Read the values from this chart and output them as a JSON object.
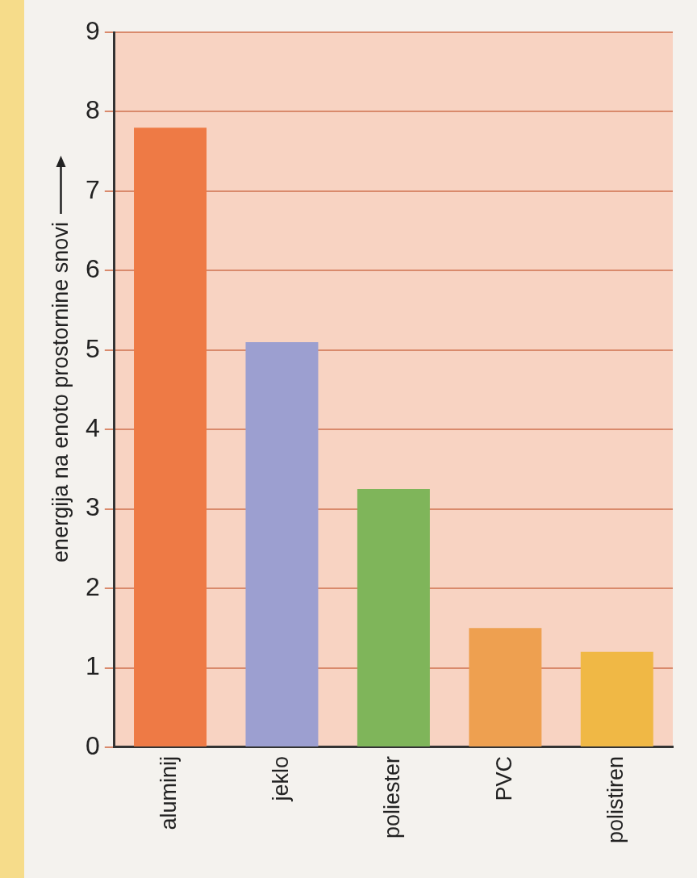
{
  "chart_data": {
    "type": "bar",
    "ylabel": "energija na enoto prostornine snovi",
    "categories": [
      "aluminij",
      "jeklo",
      "poliester",
      "PVC",
      "polistiren"
    ],
    "values": [
      7.8,
      5.1,
      3.25,
      1.5,
      1.2
    ],
    "colors": [
      "#ee7a45",
      "#9c9fd0",
      "#7fb55a",
      "#eea050",
      "#f0b845"
    ],
    "ylim": [
      0,
      9
    ],
    "yticks": [
      0,
      1,
      2,
      3,
      4,
      5,
      6,
      7,
      8,
      9
    ],
    "grid": "y",
    "legend": false
  }
}
